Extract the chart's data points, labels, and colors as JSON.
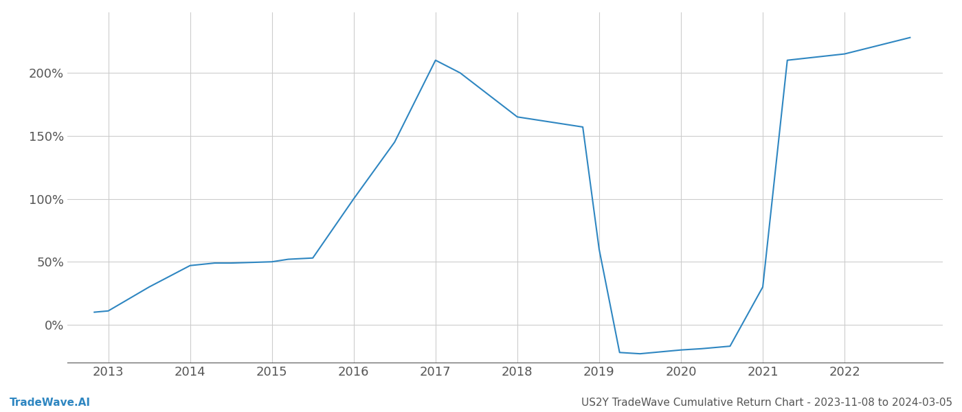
{
  "x": [
    2012.83,
    2013.0,
    2013.5,
    2014.0,
    2014.3,
    2014.5,
    2015.0,
    2015.2,
    2015.5,
    2016.0,
    2016.5,
    2017.0,
    2017.3,
    2017.6,
    2018.0,
    2018.5,
    2018.8,
    2019.0,
    2019.25,
    2019.5,
    2020.0,
    2020.25,
    2020.6,
    2021.0,
    2021.3,
    2022.0,
    2022.8
  ],
  "y": [
    10,
    11,
    30,
    47,
    49,
    49,
    50,
    52,
    53,
    100,
    145,
    210,
    200,
    185,
    165,
    160,
    157,
    60,
    -22,
    -23,
    -20,
    -19,
    -17,
    30,
    210,
    215,
    228
  ],
  "line_color": "#2e86c1",
  "title": "US2Y TradeWave Cumulative Return Chart - 2023-11-08 to 2024-03-05",
  "footer_left": "TradeWave.AI",
  "bg_color": "#ffffff",
  "grid_color": "#cccccc",
  "axis_color": "#555555",
  "xlim": [
    2012.5,
    2023.2
  ],
  "ylim": [
    -30,
    248
  ],
  "yticks": [
    0,
    50,
    100,
    150,
    200
  ],
  "ytick_labels": [
    "0%",
    "50%",
    "100%",
    "150%",
    "200%"
  ],
  "xticks": [
    2013,
    2014,
    2015,
    2016,
    2017,
    2018,
    2019,
    2020,
    2021,
    2022
  ],
  "line_width": 1.5,
  "footer_fontsize": 11,
  "title_fontsize": 11,
  "tick_fontsize": 13
}
